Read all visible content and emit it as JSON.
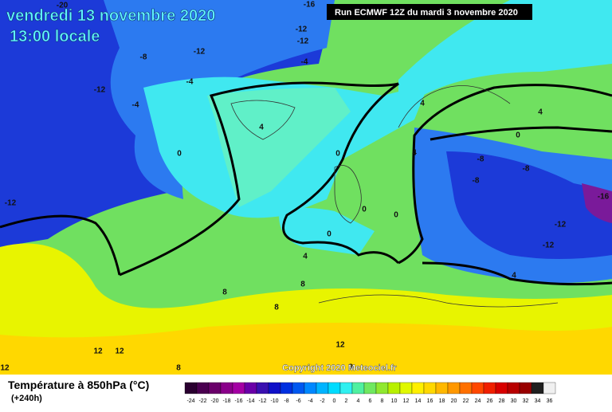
{
  "header": {
    "title": "vendredi 13 novembre 2020",
    "subtitle": "13:00 locale",
    "run": "Run ECMWF 12Z du mardi 3 novembre 2020"
  },
  "map": {
    "copyright": "Copyright 2020 Meteociel.fr",
    "contour_labels": [
      -20,
      -16,
      -12,
      -12,
      -8,
      -12,
      -4,
      -4,
      -12,
      -4,
      4,
      4,
      4,
      0,
      0,
      0,
      4,
      -8,
      -8,
      -8,
      -16,
      -12,
      0,
      0,
      -12,
      0,
      -12,
      4,
      4,
      8,
      8,
      8,
      12,
      12,
      12,
      12,
      8,
      8
    ]
  },
  "legend": {
    "title": "Température à 850hPa (°C)",
    "lead": "(+240h)",
    "scale": [
      -24,
      -22,
      -20,
      -18,
      -16,
      -14,
      -12,
      -10,
      -8,
      -6,
      -4,
      -2,
      0,
      2,
      4,
      6,
      8,
      10,
      12,
      14,
      16,
      18,
      20,
      22,
      24,
      26,
      28,
      30,
      32,
      34,
      36
    ],
    "colors": [
      "#2a0030",
      "#4a0050",
      "#6a006a",
      "#8a008a",
      "#a400a4",
      "#6a00a8",
      "#3a10b0",
      "#1010c8",
      "#0030e0",
      "#0058f0",
      "#0088ff",
      "#00b4ff",
      "#00dcff",
      "#30f0f0",
      "#50f0a0",
      "#70e860",
      "#90e830",
      "#b8f000",
      "#e0f800",
      "#fff000",
      "#ffd800",
      "#ffb800",
      "#ff9800",
      "#ff7000",
      "#ff4800",
      "#f02000",
      "#d80000",
      "#b80000",
      "#980000",
      "#202020",
      "#f0f0f0"
    ]
  }
}
